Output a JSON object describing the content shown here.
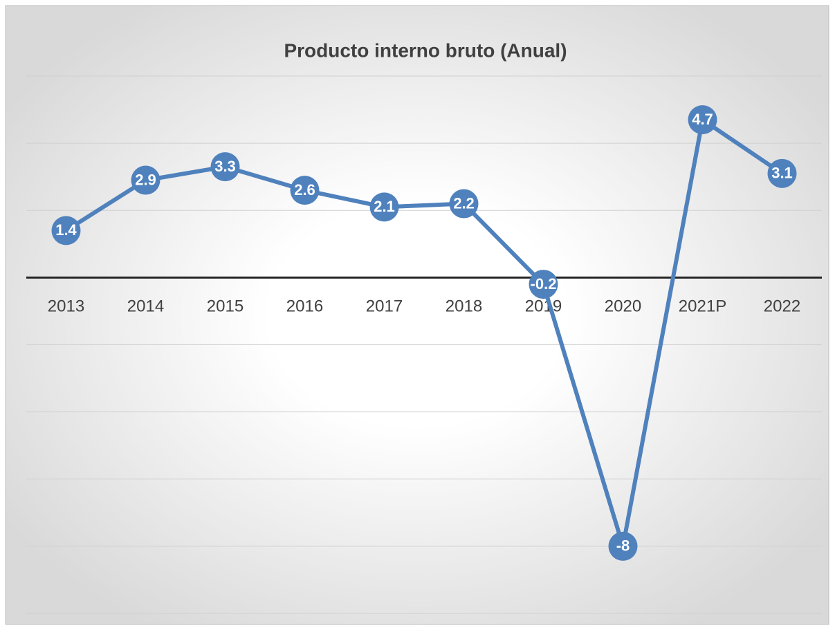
{
  "chart_data": {
    "type": "line",
    "title": "Producto interno bruto (Anual)",
    "categories": [
      "2013",
      "2014",
      "2015",
      "2016",
      "2017",
      "2018",
      "2019",
      "2020",
      "2021P",
      "2022"
    ],
    "values": [
      1.4,
      2.9,
      3.3,
      2.6,
      2.1,
      2.2,
      -0.2,
      -8,
      4.7,
      3.1
    ],
    "color": "#4f81bd",
    "ylim": [
      -10,
      6
    ],
    "yticks": [
      -10,
      -8,
      -6,
      -4,
      -2,
      0,
      2,
      4,
      6
    ],
    "grid": true
  }
}
